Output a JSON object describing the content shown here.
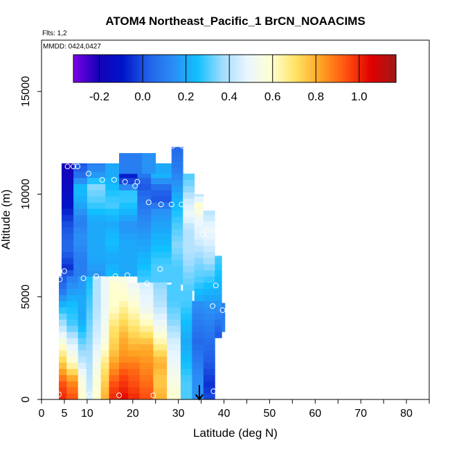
{
  "chart_data": {
    "type": "heatmap",
    "title": "ATOM4 Northeast_Pacific_1 BrCN_NOAACIMS",
    "flights_label": "Flts: 1,2",
    "dates_label": "MMDD: 0424,0427",
    "xlabel": "Latitude (deg N)",
    "ylabel": "Altitude (m)",
    "xlim": [
      0,
      85
    ],
    "ylim": [
      0,
      17500
    ],
    "x_ticks": [
      0,
      5,
      10,
      20,
      30,
      40,
      50,
      60,
      70,
      80
    ],
    "x_minor_ticks": [
      15,
      25,
      35,
      45,
      55,
      65,
      75,
      85
    ],
    "y_ticks": [
      0,
      5000,
      10000,
      15000
    ],
    "colorbar": {
      "range": [
        -0.32,
        1.17
      ],
      "ticks": [
        -0.2,
        0.0,
        0.2,
        0.4,
        0.6,
        0.8,
        1.0
      ],
      "tick_labels": [
        "-0.2",
        "0.0",
        "0.2",
        "0.4",
        "0.6",
        "0.8",
        "1.0"
      ],
      "colors": [
        "#7a00e6",
        "#1600b8",
        "#0015c8",
        "#2160e8",
        "#2b8cf5",
        "#10c0ff",
        "#9fdcff",
        "#eaf6ff",
        "#ffffd0",
        "#ffe060",
        "#ffa020",
        "#ff5010",
        "#e00000",
        "#a01818"
      ]
    },
    "cell_height_m": 300,
    "columns": [
      {
        "x0": 3.8,
        "x1": 5.5,
        "alt_min": 0,
        "alt_max": 6000,
        "profile": [
          [
            0,
            1.0
          ],
          [
            700,
            0.95
          ],
          [
            1500,
            0.8
          ],
          [
            2600,
            0.6
          ],
          [
            3600,
            0.4
          ],
          [
            4500,
            0.25
          ],
          [
            5200,
            0.1
          ],
          [
            6000,
            0.0
          ]
        ]
      },
      {
        "x0": 4.4,
        "x1": 7.0,
        "alt_min": 6000,
        "alt_max": 11500,
        "profile": [
          [
            6000,
            0.05
          ],
          [
            6400,
            -0.05
          ],
          [
            7400,
            0.05
          ],
          [
            8500,
            0.0
          ],
          [
            9500,
            -0.1
          ],
          [
            10500,
            -0.15
          ],
          [
            11500,
            -0.2
          ]
        ]
      },
      {
        "x0": 5.5,
        "x1": 8.0,
        "alt_min": 0,
        "alt_max": 6000,
        "profile": [
          [
            0,
            0.95
          ],
          [
            900,
            0.85
          ],
          [
            1800,
            0.6
          ],
          [
            2800,
            0.45
          ],
          [
            3600,
            0.3
          ],
          [
            4600,
            0.25
          ],
          [
            5500,
            0.15
          ],
          [
            6000,
            0.1
          ]
        ]
      },
      {
        "x0": 7.0,
        "x1": 10.0,
        "alt_min": 6000,
        "alt_max": 11500,
        "profile": [
          [
            6000,
            0.1
          ],
          [
            6900,
            0.1
          ],
          [
            7800,
            0.15
          ],
          [
            8700,
            0.1
          ],
          [
            9500,
            0.2
          ],
          [
            10300,
            0.25
          ],
          [
            11000,
            0.05
          ],
          [
            11500,
            0.0
          ]
        ]
      },
      {
        "x0": 8.0,
        "x1": 9.8,
        "alt_min": 0,
        "alt_max": 6000,
        "profile": [
          [
            0,
            0.6
          ],
          [
            1000,
            0.55
          ],
          [
            2000,
            0.4
          ],
          [
            3000,
            0.3
          ],
          [
            4000,
            0.2
          ],
          [
            5000,
            0.2
          ],
          [
            6000,
            0.15
          ]
        ]
      },
      {
        "x0": 9.8,
        "x1": 11.2,
        "alt_min": 0,
        "alt_max": 6000,
        "profile": [
          [
            0,
            0.45
          ],
          [
            1500,
            0.4
          ],
          [
            3000,
            0.35
          ],
          [
            4500,
            0.3
          ],
          [
            6000,
            0.25
          ]
        ]
      },
      {
        "x0": 10.0,
        "x1": 14.0,
        "alt_min": 6000,
        "alt_max": 11500,
        "profile": [
          [
            6000,
            0.15
          ],
          [
            6900,
            0.2
          ],
          [
            7800,
            0.2
          ],
          [
            8700,
            0.2
          ],
          [
            9600,
            0.3
          ],
          [
            10400,
            0.35
          ],
          [
            11000,
            0.15
          ],
          [
            11500,
            0.1
          ]
        ]
      },
      {
        "x0": 11.2,
        "x1": 13.0,
        "alt_min": 0,
        "alt_max": 6000,
        "profile": [
          [
            0,
            0.6
          ],
          [
            1500,
            0.55
          ],
          [
            3000,
            0.45
          ],
          [
            4500,
            0.4
          ],
          [
            6000,
            0.4
          ]
        ]
      },
      {
        "x0": 13.0,
        "x1": 14.8,
        "alt_min": 0,
        "alt_max": 6000,
        "profile": [
          [
            0,
            0.8
          ],
          [
            1500,
            0.7
          ],
          [
            3000,
            0.55
          ],
          [
            4500,
            0.5
          ],
          [
            6000,
            0.5
          ]
        ]
      },
      {
        "x0": 14.0,
        "x1": 17.0,
        "alt_min": 6000,
        "alt_max": 11500,
        "profile": [
          [
            6000,
            0.25
          ],
          [
            6800,
            0.2
          ],
          [
            7700,
            0.25
          ],
          [
            8600,
            0.2
          ],
          [
            9500,
            0.3
          ],
          [
            10300,
            0.25
          ],
          [
            11000,
            0.2
          ],
          [
            11500,
            0.2
          ]
        ]
      },
      {
        "x0": 14.8,
        "x1": 17.0,
        "alt_min": 0,
        "alt_max": 6000,
        "profile": [
          [
            0,
            1.0
          ],
          [
            700,
            0.95
          ],
          [
            1500,
            0.85
          ],
          [
            2500,
            0.75
          ],
          [
            3500,
            0.7
          ],
          [
            4500,
            0.6
          ],
          [
            5500,
            0.6
          ],
          [
            6000,
            0.55
          ]
        ]
      },
      {
        "x0": 17.0,
        "x1": 19.0,
        "alt_min": 0,
        "alt_max": 6000,
        "profile": [
          [
            0,
            1.05
          ],
          [
            500,
            1.0
          ],
          [
            1200,
            0.95
          ],
          [
            2000,
            0.85
          ],
          [
            3000,
            0.8
          ],
          [
            4000,
            0.7
          ],
          [
            5000,
            0.6
          ],
          [
            6000,
            0.55
          ]
        ]
      },
      {
        "x0": 17.0,
        "x1": 21.0,
        "alt_min": 6000,
        "alt_max": 11000,
        "profile": [
          [
            6000,
            0.2
          ],
          [
            6800,
            0.2
          ],
          [
            7600,
            0.2
          ],
          [
            8500,
            0.15
          ],
          [
            9300,
            0.25
          ],
          [
            10000,
            0.3
          ],
          [
            10600,
            0.0
          ],
          [
            11000,
            -0.1
          ]
        ]
      },
      {
        "x0": 17.0,
        "x1": 22.0,
        "alt_min": 11000,
        "alt_max": 12000,
        "profile": [
          [
            11000,
            0.1
          ],
          [
            12000,
            0.1
          ]
        ]
      },
      {
        "x0": 19.0,
        "x1": 21.5,
        "alt_min": 0,
        "alt_max": 5700,
        "profile": [
          [
            0,
            1.0
          ],
          [
            700,
            0.95
          ],
          [
            1500,
            0.9
          ],
          [
            2500,
            0.8
          ],
          [
            3500,
            0.7
          ],
          [
            4500,
            0.6
          ],
          [
            5700,
            0.5
          ]
        ]
      },
      {
        "x0": 21.0,
        "x1": 24.0,
        "alt_min": 5700,
        "alt_max": 11000,
        "profile": [
          [
            5700,
            0.3
          ],
          [
            6500,
            0.25
          ],
          [
            7400,
            0.2
          ],
          [
            8300,
            0.15
          ],
          [
            9200,
            0.1
          ],
          [
            10000,
            0.05
          ],
          [
            10500,
            0.0
          ],
          [
            11000,
            0.1
          ]
        ]
      },
      {
        "x0": 21.5,
        "x1": 24.5,
        "alt_min": 0,
        "alt_max": 5700,
        "profile": [
          [
            0,
            0.95
          ],
          [
            800,
            0.9
          ],
          [
            1700,
            0.85
          ],
          [
            2600,
            0.8
          ],
          [
            3500,
            0.65
          ],
          [
            4500,
            0.5
          ],
          [
            5700,
            0.45
          ]
        ]
      },
      {
        "x0": 22.0,
        "x1": 25.0,
        "alt_min": 11000,
        "alt_max": 12000,
        "profile": [
          [
            11000,
            0.15
          ],
          [
            12000,
            0.15
          ]
        ]
      },
      {
        "x0": 24.0,
        "x1": 28.5,
        "alt_min": 5700,
        "alt_max": 11000,
        "profile": [
          [
            5700,
            0.3
          ],
          [
            6500,
            0.3
          ],
          [
            7400,
            0.25
          ],
          [
            8300,
            0.2
          ],
          [
            9200,
            0.15
          ],
          [
            9800,
            0.0
          ],
          [
            10300,
            0.05
          ],
          [
            11000,
            0.25
          ]
        ]
      },
      {
        "x0": 24.5,
        "x1": 27.5,
        "alt_min": 0,
        "alt_max": 5700,
        "profile": [
          [
            0,
            0.8
          ],
          [
            900,
            0.75
          ],
          [
            1800,
            0.8
          ],
          [
            2700,
            0.65
          ],
          [
            3700,
            0.5
          ],
          [
            4700,
            0.4
          ],
          [
            5700,
            0.35
          ]
        ]
      },
      {
        "x0": 25.0,
        "x1": 28.5,
        "alt_min": 11000,
        "alt_max": 11500,
        "profile": [
          [
            11000,
            0.2
          ],
          [
            11500,
            0.2
          ]
        ]
      },
      {
        "x0": 27.5,
        "x1": 30.5,
        "alt_min": 0,
        "alt_max": 5600,
        "profile": [
          [
            0,
            0.6
          ],
          [
            900,
            0.55
          ],
          [
            1800,
            0.5
          ],
          [
            2800,
            0.45
          ],
          [
            3800,
            0.35
          ],
          [
            4800,
            0.3
          ],
          [
            5600,
            0.3
          ]
        ]
      },
      {
        "x0": 28.5,
        "x1": 31.0,
        "alt_min": 5600,
        "alt_max": 12300,
        "profile": [
          [
            5600,
            0.3
          ],
          [
            6500,
            0.3
          ],
          [
            7500,
            0.35
          ],
          [
            8500,
            0.3
          ],
          [
            9300,
            0.25
          ],
          [
            10000,
            0.2
          ],
          [
            11200,
            0.1
          ],
          [
            12300,
            0.05
          ]
        ]
      },
      {
        "x0": 30.5,
        "x1": 33.0,
        "alt_min": 0,
        "alt_max": 5300,
        "profile": [
          [
            0,
            0.3
          ],
          [
            900,
            0.3
          ],
          [
            1800,
            0.25
          ],
          [
            2800,
            0.2
          ],
          [
            3800,
            0.25
          ],
          [
            4800,
            0.3
          ],
          [
            5300,
            0.3
          ]
        ]
      },
      {
        "x0": 31.0,
        "x1": 33.5,
        "alt_min": 5300,
        "alt_max": 11000,
        "profile": [
          [
            5300,
            0.3
          ],
          [
            6300,
            0.35
          ],
          [
            7300,
            0.4
          ],
          [
            8300,
            0.4
          ],
          [
            9000,
            0.5
          ],
          [
            9600,
            0.45
          ],
          [
            10300,
            0.35
          ],
          [
            11000,
            0.3
          ]
        ]
      },
      {
        "x0": 33.0,
        "x1": 35.5,
        "alt_min": 0,
        "alt_max": 4800,
        "profile": [
          [
            0,
            0.15
          ],
          [
            900,
            0.15
          ],
          [
            1800,
            0.1
          ],
          [
            2800,
            0.05
          ],
          [
            3800,
            0.1
          ],
          [
            4800,
            0.15
          ]
        ]
      },
      {
        "x0": 33.5,
        "x1": 35.5,
        "alt_min": 4800,
        "alt_max": 10000,
        "profile": [
          [
            4800,
            0.2
          ],
          [
            5800,
            0.3
          ],
          [
            6800,
            0.35
          ],
          [
            7800,
            0.45
          ],
          [
            8800,
            0.5
          ],
          [
            9400,
            0.6
          ],
          [
            10000,
            0.4
          ]
        ]
      },
      {
        "x0": 35.5,
        "x1": 38.0,
        "alt_min": 0,
        "alt_max": 9200,
        "profile": [
          [
            0,
            0.0
          ],
          [
            700,
            -0.05
          ],
          [
            1500,
            0.0
          ],
          [
            2500,
            0.05
          ],
          [
            3500,
            0.1
          ],
          [
            4500,
            0.15
          ],
          [
            5500,
            0.25
          ],
          [
            6500,
            0.35
          ],
          [
            7500,
            0.45
          ],
          [
            8300,
            0.5
          ],
          [
            9200,
            0.4
          ]
        ]
      },
      {
        "x0": 38.0,
        "x1": 39.5,
        "alt_min": 3000,
        "alt_max": 7000,
        "profile": [
          [
            3000,
            0.0
          ],
          [
            4000,
            0.1
          ],
          [
            5000,
            0.2
          ],
          [
            6000,
            0.25
          ],
          [
            7000,
            0.3
          ]
        ]
      },
      {
        "x0": 39.5,
        "x1": 40.2,
        "alt_min": 3300,
        "alt_max": 4700,
        "profile": [
          [
            3300,
            0.1
          ],
          [
            4000,
            0.1
          ],
          [
            4700,
            0.1
          ]
        ]
      }
    ],
    "points": [
      {
        "lat": 3.8,
        "alt": 250
      },
      {
        "lat": 4.0,
        "alt": 5850
      },
      {
        "lat": 5.0,
        "alt": 6250
      },
      {
        "lat": 5.7,
        "alt": 11350
      },
      {
        "lat": 7.0,
        "alt": 11350
      },
      {
        "lat": 7.9,
        "alt": 11350
      },
      {
        "lat": 9.2,
        "alt": 5900
      },
      {
        "lat": 10.3,
        "alt": 11000
      },
      {
        "lat": 10.5,
        "alt": 250
      },
      {
        "lat": 12.0,
        "alt": 6000
      },
      {
        "lat": 13.3,
        "alt": 10700
      },
      {
        "lat": 15.9,
        "alt": 10700
      },
      {
        "lat": 16.2,
        "alt": 6000
      },
      {
        "lat": 17.0,
        "alt": 200
      },
      {
        "lat": 18.3,
        "alt": 10600
      },
      {
        "lat": 18.8,
        "alt": 6050
      },
      {
        "lat": 20.5,
        "alt": 10400
      },
      {
        "lat": 21.0,
        "alt": 10600
      },
      {
        "lat": 23.1,
        "alt": 5650
      },
      {
        "lat": 23.5,
        "alt": 9600
      },
      {
        "lat": 24.5,
        "alt": 200
      },
      {
        "lat": 26.0,
        "alt": 6350
      },
      {
        "lat": 26.2,
        "alt": 9500
      },
      {
        "lat": 28.5,
        "alt": 9500
      },
      {
        "lat": 28.7,
        "alt": 12350
      },
      {
        "lat": 30.7,
        "alt": 9500
      },
      {
        "lat": 30.9,
        "alt": 12350
      },
      {
        "lat": 35.4,
        "alt": 8050
      },
      {
        "lat": 37.5,
        "alt": 4550
      },
      {
        "lat": 37.7,
        "alt": 400
      },
      {
        "lat": 38.2,
        "alt": 5550
      },
      {
        "lat": 39.7,
        "alt": 4350
      }
    ],
    "arrow": {
      "lat": 34.6,
      "alt_from": 700,
      "alt_to": 0
    }
  }
}
